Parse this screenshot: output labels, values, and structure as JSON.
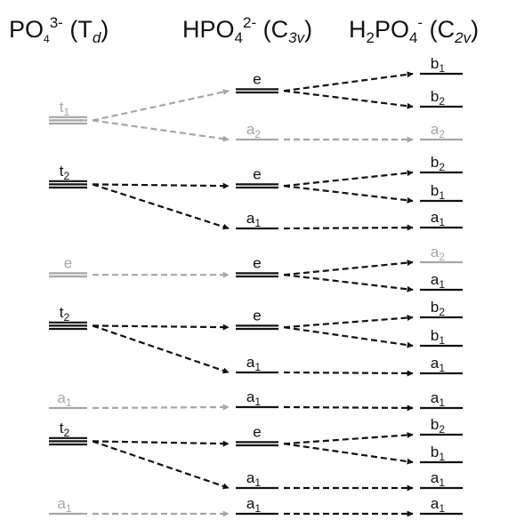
{
  "headers": [
    {
      "species": "PO",
      "sub": "4",
      "sup": "3-",
      "sym": "T",
      "symsub": "d"
    },
    {
      "species": "HPO",
      "sub": "4",
      "sup": "2-",
      "sym": "C",
      "symsub": "3v"
    },
    {
      "species": "H",
      "speciessub": "2",
      "species2": "PO",
      "sub": "4",
      "sup": "-",
      "sym": "C",
      "symsub": "2v"
    }
  ],
  "colors": {
    "dark": "#111111",
    "gray": "#a6a6a6"
  },
  "td_levels": [
    {
      "label": "t",
      "sub": "1",
      "degeneracy": 3,
      "color": "gray"
    },
    {
      "label": "t",
      "sub": "2",
      "degeneracy": 3,
      "color": "dark"
    },
    {
      "label": "e",
      "sub": "",
      "degeneracy": 2,
      "color": "gray"
    },
    {
      "label": "t",
      "sub": "2",
      "degeneracy": 3,
      "color": "dark"
    },
    {
      "label": "a",
      "sub": "1",
      "degeneracy": 1,
      "color": "gray"
    },
    {
      "label": "t",
      "sub": "2",
      "degeneracy": 3,
      "color": "dark"
    },
    {
      "label": "a",
      "sub": "1",
      "degeneracy": 1,
      "color": "gray"
    }
  ],
  "c3v_levels": [
    {
      "label": "e",
      "sub": "",
      "degeneracy": 2,
      "color": "dark"
    },
    {
      "label": "a",
      "sub": "2",
      "degeneracy": 1,
      "color": "gray"
    },
    {
      "label": "e",
      "sub": "",
      "degeneracy": 2,
      "color": "dark"
    },
    {
      "label": "a",
      "sub": "1",
      "degeneracy": 1,
      "color": "dark"
    },
    {
      "label": "e",
      "sub": "",
      "degeneracy": 2,
      "color": "dark"
    },
    {
      "label": "e",
      "sub": "",
      "degeneracy": 2,
      "color": "dark"
    },
    {
      "label": "a",
      "sub": "1",
      "degeneracy": 1,
      "color": "dark"
    },
    {
      "label": "a",
      "sub": "1",
      "degeneracy": 1,
      "color": "dark"
    },
    {
      "label": "e",
      "sub": "",
      "degeneracy": 2,
      "color": "dark"
    },
    {
      "label": "a",
      "sub": "1",
      "degeneracy": 1,
      "color": "dark"
    },
    {
      "label": "a",
      "sub": "1",
      "degeneracy": 1,
      "color": "dark"
    }
  ],
  "c2v_levels": [
    {
      "label": "b",
      "sub": "1",
      "degeneracy": 1,
      "color": "dark"
    },
    {
      "label": "b",
      "sub": "2",
      "degeneracy": 1,
      "color": "dark"
    },
    {
      "label": "a",
      "sub": "2",
      "degeneracy": 1,
      "color": "gray"
    },
    {
      "label": "b",
      "sub": "2",
      "degeneracy": 1,
      "color": "dark"
    },
    {
      "label": "b",
      "sub": "1",
      "degeneracy": 1,
      "color": "dark"
    },
    {
      "label": "a",
      "sub": "1",
      "degeneracy": 1,
      "color": "dark"
    },
    {
      "label": "a",
      "sub": "2",
      "degeneracy": 1,
      "color": "gray"
    },
    {
      "label": "a",
      "sub": "1",
      "degeneracy": 1,
      "color": "dark"
    },
    {
      "label": "b",
      "sub": "2",
      "degeneracy": 1,
      "color": "dark"
    },
    {
      "label": "b",
      "sub": "1",
      "degeneracy": 1,
      "color": "dark"
    },
    {
      "label": "a",
      "sub": "1",
      "degeneracy": 1,
      "color": "dark"
    },
    {
      "label": "a",
      "sub": "1",
      "degeneracy": 1,
      "color": "dark"
    },
    {
      "label": "b",
      "sub": "2",
      "degeneracy": 1,
      "color": "dark"
    },
    {
      "label": "b",
      "sub": "1",
      "degeneracy": 1,
      "color": "dark"
    },
    {
      "label": "a",
      "sub": "1",
      "degeneracy": 1,
      "color": "dark"
    },
    {
      "label": "a",
      "sub": "1",
      "degeneracy": 1,
      "color": "dark"
    }
  ],
  "correlations_td_to_c3v": [
    {
      "from": 0,
      "to": 0,
      "color": "gray"
    },
    {
      "from": 0,
      "to": 1,
      "color": "gray"
    },
    {
      "from": 1,
      "to": 2,
      "color": "dark"
    },
    {
      "from": 1,
      "to": 3,
      "color": "dark"
    },
    {
      "from": 2,
      "to": 4,
      "color": "gray"
    },
    {
      "from": 3,
      "to": 5,
      "color": "dark"
    },
    {
      "from": 3,
      "to": 6,
      "color": "dark"
    },
    {
      "from": 4,
      "to": 7,
      "color": "gray"
    },
    {
      "from": 5,
      "to": 8,
      "color": "dark"
    },
    {
      "from": 5,
      "to": 9,
      "color": "dark"
    },
    {
      "from": 6,
      "to": 10,
      "color": "gray"
    }
  ],
  "correlations_c3v_to_c2v": [
    {
      "from": 0,
      "to": 0,
      "color": "dark"
    },
    {
      "from": 0,
      "to": 1,
      "color": "dark"
    },
    {
      "from": 1,
      "to": 2,
      "color": "gray"
    },
    {
      "from": 2,
      "to": 3,
      "color": "dark"
    },
    {
      "from": 2,
      "to": 4,
      "color": "dark"
    },
    {
      "from": 3,
      "to": 5,
      "color": "dark"
    },
    {
      "from": 4,
      "to": 6,
      "color": "dark"
    },
    {
      "from": 4,
      "to": 7,
      "color": "dark"
    },
    {
      "from": 5,
      "to": 8,
      "color": "dark"
    },
    {
      "from": 5,
      "to": 9,
      "color": "dark"
    },
    {
      "from": 6,
      "to": 10,
      "color": "dark"
    },
    {
      "from": 7,
      "to": 11,
      "color": "dark"
    },
    {
      "from": 8,
      "to": 12,
      "color": "dark"
    },
    {
      "from": 8,
      "to": 13,
      "color": "dark"
    },
    {
      "from": 9,
      "to": 14,
      "color": "dark"
    },
    {
      "from": 10,
      "to": 15,
      "color": "dark"
    }
  ]
}
